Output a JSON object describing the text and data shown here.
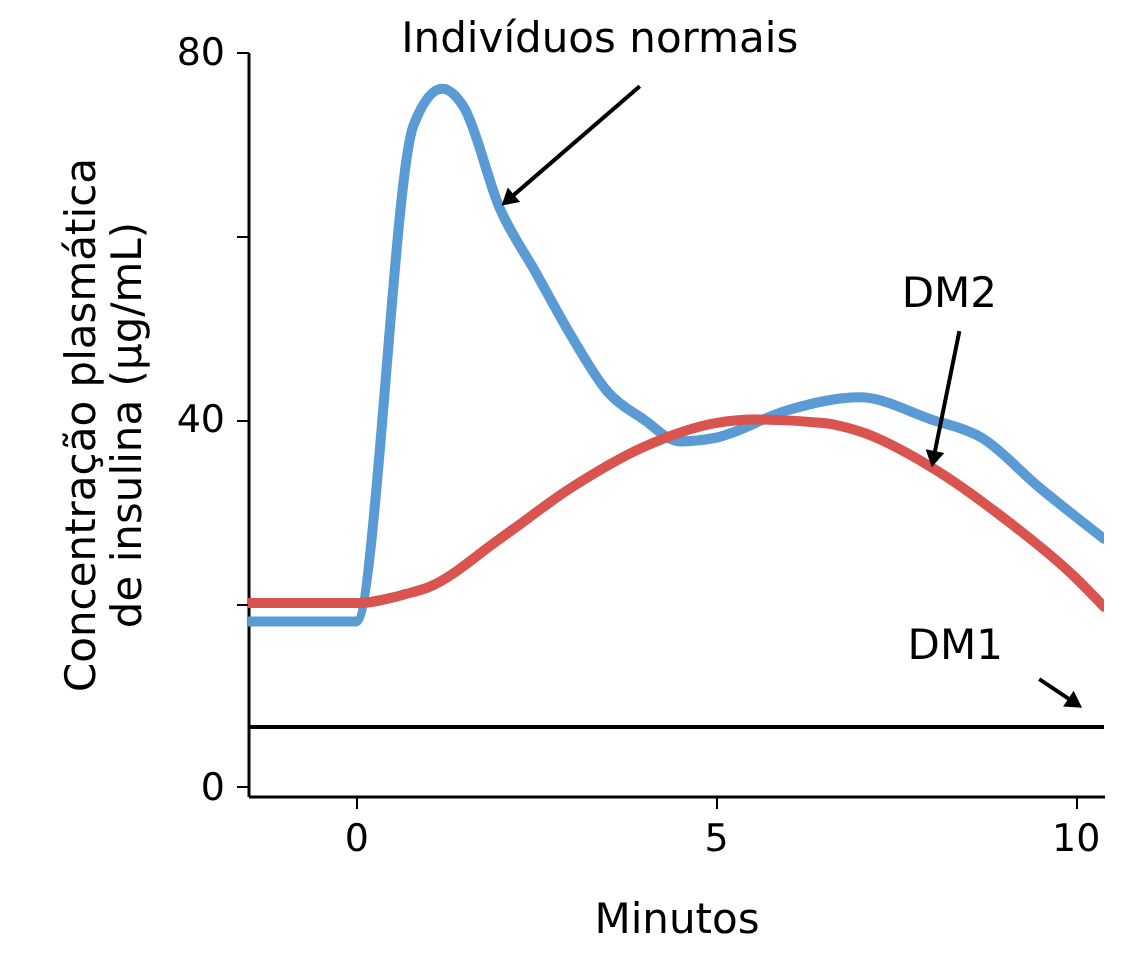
{
  "chart_data": {
    "type": "line",
    "xlabel": "Minutos",
    "ylabel": "Concentração plasmática de insulina (µg/mL)",
    "xlim": [
      -1.5,
      10.4
    ],
    "ylim": [
      -1,
      80
    ],
    "xticks": [
      0,
      5,
      10
    ],
    "yticks": [
      0,
      {
        "value": 20,
        "label": null
      },
      40,
      {
        "value": 60,
        "label": null
      },
      80
    ],
    "grid": false,
    "line_style": "solid",
    "marker": "none",
    "series": [
      {
        "name": null,
        "color": "#5b9bd5",
        "x": [
          -1.5,
          0,
          0.8,
          1.2,
          1.5,
          2,
          2.5,
          3,
          3.5,
          4,
          4.5,
          5,
          6,
          7,
          8,
          8.7,
          9.5,
          10.4
        ],
        "values": [
          18,
          18,
          72,
          76,
          74,
          63,
          56,
          49,
          43,
          40,
          37.6,
          38,
          41,
          42.4,
          40,
          38,
          32.6,
          27
        ]
      },
      {
        "name": null,
        "color": "#d9534f",
        "x": [
          -1.5,
          0,
          0.7,
          1,
          2,
          3,
          4,
          5,
          5.5,
          6.5,
          7,
          8,
          9,
          10,
          10.4
        ],
        "values": [
          20,
          20,
          21,
          21.7,
          27,
          32.6,
          37,
          39.6,
          40,
          39.6,
          38.7,
          34.8,
          29.3,
          22.8,
          19.6
        ]
      },
      {
        "name": null,
        "color": "#000000",
        "x": [
          -1.5,
          10.4
        ],
        "values": [
          6.5,
          6.5
        ]
      }
    ],
    "annotations": [
      {
        "text": "Indivíduos normais",
        "x": 2,
        "y": 63
      },
      {
        "text": "DM2",
        "x": 8,
        "y": 34.8
      },
      {
        "text": "DM1",
        "x": 10,
        "y": 6.5
      }
    ]
  }
}
